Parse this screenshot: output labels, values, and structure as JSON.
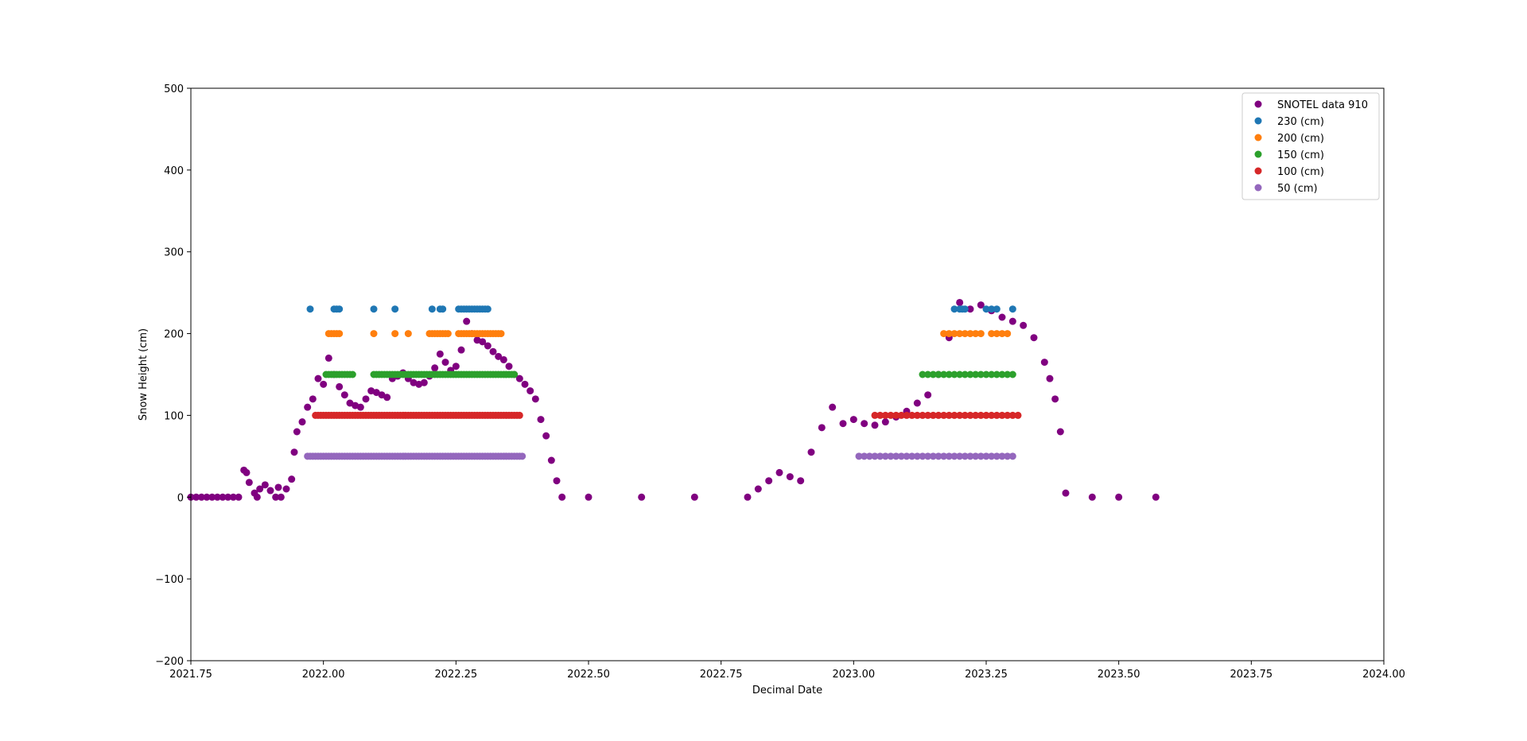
{
  "chart_data": {
    "type": "scatter",
    "title": "",
    "xlabel": "Decimal Date",
    "ylabel": "Snow Height (cm)",
    "xlim": [
      2021.75,
      2024.0
    ],
    "ylim": [
      -200,
      500
    ],
    "x_ticks": [
      2021.75,
      2022.0,
      2022.25,
      2022.5,
      2022.75,
      2023.0,
      2023.25,
      2023.5,
      2023.75,
      2024.0
    ],
    "x_tick_labels": [
      "2021.75",
      "2022.00",
      "2022.25",
      "2022.50",
      "2022.75",
      "2023.00",
      "2023.25",
      "2023.50",
      "2023.75",
      "2024.00"
    ],
    "y_ticks": [
      -200,
      -100,
      0,
      100,
      200,
      300,
      400,
      500
    ],
    "y_tick_labels": [
      "−200",
      "−100",
      "0",
      "100",
      "200",
      "300",
      "400",
      "500"
    ],
    "grid": false,
    "legend_position": "top-right",
    "series": [
      {
        "name": "SNOTEL data 910",
        "color": "#800080",
        "x": [
          2021.75,
          2021.76,
          2021.77,
          2021.78,
          2021.79,
          2021.8,
          2021.81,
          2021.82,
          2021.83,
          2021.84,
          2021.85,
          2021.855,
          2021.86,
          2021.87,
          2021.875,
          2021.88,
          2021.89,
          2021.9,
          2021.91,
          2021.915,
          2021.92,
          2021.93,
          2021.94,
          2021.945,
          2021.95,
          2021.96,
          2021.97,
          2021.98,
          2021.99,
          2022.0,
          2022.01,
          2022.02,
          2022.03,
          2022.04,
          2022.05,
          2022.06,
          2022.07,
          2022.08,
          2022.09,
          2022.1,
          2022.11,
          2022.12,
          2022.13,
          2022.14,
          2022.15,
          2022.16,
          2022.17,
          2022.18,
          2022.19,
          2022.2,
          2022.21,
          2022.22,
          2022.23,
          2022.24,
          2022.25,
          2022.26,
          2022.27,
          2022.28,
          2022.29,
          2022.3,
          2022.31,
          2022.32,
          2022.33,
          2022.34,
          2022.35,
          2022.36,
          2022.37,
          2022.38,
          2022.39,
          2022.4,
          2022.41,
          2022.42,
          2022.43,
          2022.44,
          2022.45,
          2022.5,
          2022.6,
          2022.7,
          2022.8,
          2022.82,
          2022.84,
          2022.86,
          2022.88,
          2022.9,
          2022.92,
          2022.94,
          2022.96,
          2022.98,
          2023.0,
          2023.02,
          2023.04,
          2023.06,
          2023.08,
          2023.1,
          2023.12,
          2023.14,
          2023.16,
          2023.18,
          2023.2,
          2023.22,
          2023.24,
          2023.26,
          2023.28,
          2023.3,
          2023.32,
          2023.34,
          2023.36,
          2023.37,
          2023.38,
          2023.39,
          2023.4,
          2023.45,
          2023.5,
          2023.57
        ],
        "values": [
          0,
          0,
          0,
          0,
          0,
          0,
          0,
          0,
          0,
          0,
          33,
          30,
          18,
          5,
          0,
          10,
          15,
          8,
          0,
          12,
          0,
          10,
          22,
          55,
          80,
          92,
          110,
          120,
          145,
          138,
          170,
          150,
          135,
          125,
          115,
          112,
          110,
          120,
          130,
          128,
          125,
          122,
          145,
          148,
          152,
          145,
          140,
          138,
          140,
          148,
          158,
          175,
          165,
          155,
          160,
          180,
          215,
          200,
          192,
          190,
          185,
          178,
          172,
          168,
          160,
          150,
          145,
          138,
          130,
          120,
          95,
          75,
          45,
          20,
          0,
          0,
          0,
          0,
          0,
          10,
          20,
          30,
          25,
          20,
          55,
          85,
          110,
          90,
          95,
          90,
          88,
          92,
          98,
          105,
          115,
          125,
          150,
          195,
          238,
          230,
          235,
          228,
          220,
          215,
          210,
          195,
          165,
          145,
          120,
          80,
          5,
          0,
          0,
          0
        ]
      },
      {
        "name": "230 (cm)",
        "color": "#1f77b4",
        "x": [
          2021.975,
          2022.02,
          2022.025,
          2022.03,
          2022.095,
          2022.135,
          2022.205,
          2022.22,
          2022.225,
          2022.255,
          2022.26,
          2022.265,
          2022.27,
          2022.275,
          2022.28,
          2022.285,
          2022.29,
          2022.295,
          2022.3,
          2022.305,
          2022.31,
          2023.19,
          2023.2,
          2023.205,
          2023.21,
          2023.25,
          2023.26,
          2023.27,
          2023.3
        ],
        "values": [
          230,
          230,
          230,
          230,
          230,
          230,
          230,
          230,
          230,
          230,
          230,
          230,
          230,
          230,
          230,
          230,
          230,
          230,
          230,
          230,
          230,
          230,
          230,
          230,
          230,
          230,
          230,
          230,
          230
        ]
      },
      {
        "name": "200 (cm)",
        "color": "#ff7f0e",
        "x": [
          2022.01,
          2022.015,
          2022.02,
          2022.025,
          2022.03,
          2022.095,
          2022.135,
          2022.16,
          2022.2,
          2022.205,
          2022.21,
          2022.215,
          2022.22,
          2022.225,
          2022.23,
          2022.235,
          2022.255,
          2022.26,
          2022.265,
          2022.27,
          2022.275,
          2022.28,
          2022.285,
          2022.29,
          2022.295,
          2022.3,
          2022.305,
          2022.31,
          2022.315,
          2022.32,
          2022.325,
          2022.33,
          2022.335,
          2023.17,
          2023.18,
          2023.19,
          2023.2,
          2023.21,
          2023.22,
          2023.23,
          2023.24,
          2023.26,
          2023.27,
          2023.28,
          2023.29
        ],
        "values": [
          200,
          200,
          200,
          200,
          200,
          200,
          200,
          200,
          200,
          200,
          200,
          200,
          200,
          200,
          200,
          200,
          200,
          200,
          200,
          200,
          200,
          200,
          200,
          200,
          200,
          200,
          200,
          200,
          200,
          200,
          200,
          200,
          200,
          200,
          200,
          200,
          200,
          200,
          200,
          200,
          200,
          200,
          200,
          200,
          200
        ]
      },
      {
        "name": "150 (cm)",
        "color": "#2ca02c",
        "x": [
          2022.005,
          2022.01,
          2022.015,
          2022.02,
          2022.025,
          2022.03,
          2022.035,
          2022.04,
          2022.045,
          2022.05,
          2022.055,
          2022.095,
          2022.1,
          2022.105,
          2022.11,
          2022.115,
          2022.12,
          2022.125,
          2022.13,
          2022.135,
          2022.14,
          2022.145,
          2022.15,
          2022.155,
          2022.16,
          2022.165,
          2022.17,
          2022.175,
          2022.18,
          2022.185,
          2022.19,
          2022.195,
          2022.2,
          2022.205,
          2022.21,
          2022.215,
          2022.22,
          2022.225,
          2022.23,
          2022.235,
          2022.24,
          2022.245,
          2022.25,
          2022.255,
          2022.26,
          2022.265,
          2022.27,
          2022.275,
          2022.28,
          2022.285,
          2022.29,
          2022.295,
          2022.3,
          2022.305,
          2022.31,
          2022.315,
          2022.32,
          2022.325,
          2022.33,
          2022.335,
          2022.34,
          2022.345,
          2022.35,
          2022.355,
          2022.36,
          2023.13,
          2023.14,
          2023.15,
          2023.16,
          2023.17,
          2023.18,
          2023.19,
          2023.2,
          2023.21,
          2023.22,
          2023.23,
          2023.24,
          2023.25,
          2023.26,
          2023.27,
          2023.28,
          2023.29,
          2023.3
        ],
        "values": [
          150,
          150,
          150,
          150,
          150,
          150,
          150,
          150,
          150,
          150,
          150,
          150,
          150,
          150,
          150,
          150,
          150,
          150,
          150,
          150,
          150,
          150,
          150,
          150,
          150,
          150,
          150,
          150,
          150,
          150,
          150,
          150,
          150,
          150,
          150,
          150,
          150,
          150,
          150,
          150,
          150,
          150,
          150,
          150,
          150,
          150,
          150,
          150,
          150,
          150,
          150,
          150,
          150,
          150,
          150,
          150,
          150,
          150,
          150,
          150,
          150,
          150,
          150,
          150,
          150,
          150,
          150,
          150,
          150,
          150,
          150,
          150,
          150,
          150,
          150,
          150,
          150,
          150,
          150,
          150,
          150,
          150,
          150
        ]
      },
      {
        "name": "100 (cm)",
        "color": "#d62728",
        "x": [
          2021.985,
          2021.99,
          2021.995,
          2022.0,
          2022.005,
          2022.01,
          2022.015,
          2022.02,
          2022.025,
          2022.03,
          2022.035,
          2022.04,
          2022.045,
          2022.05,
          2022.055,
          2022.06,
          2022.065,
          2022.07,
          2022.075,
          2022.08,
          2022.085,
          2022.09,
          2022.095,
          2022.1,
          2022.105,
          2022.11,
          2022.115,
          2022.12,
          2022.125,
          2022.13,
          2022.135,
          2022.14,
          2022.145,
          2022.15,
          2022.155,
          2022.16,
          2022.165,
          2022.17,
          2022.175,
          2022.18,
          2022.185,
          2022.19,
          2022.195,
          2022.2,
          2022.205,
          2022.21,
          2022.215,
          2022.22,
          2022.225,
          2022.23,
          2022.235,
          2022.24,
          2022.245,
          2022.25,
          2022.255,
          2022.26,
          2022.265,
          2022.27,
          2022.275,
          2022.28,
          2022.285,
          2022.29,
          2022.295,
          2022.3,
          2022.305,
          2022.31,
          2022.315,
          2022.32,
          2022.325,
          2022.33,
          2022.335,
          2022.34,
          2022.345,
          2022.35,
          2022.355,
          2022.36,
          2022.365,
          2022.37,
          2023.04,
          2023.05,
          2023.06,
          2023.07,
          2023.08,
          2023.09,
          2023.1,
          2023.11,
          2023.12,
          2023.13,
          2023.14,
          2023.15,
          2023.16,
          2023.17,
          2023.18,
          2023.19,
          2023.2,
          2023.21,
          2023.22,
          2023.23,
          2023.24,
          2023.25,
          2023.26,
          2023.27,
          2023.28,
          2023.29,
          2023.3,
          2023.31
        ],
        "values": [
          100,
          100,
          100,
          100,
          100,
          100,
          100,
          100,
          100,
          100,
          100,
          100,
          100,
          100,
          100,
          100,
          100,
          100,
          100,
          100,
          100,
          100,
          100,
          100,
          100,
          100,
          100,
          100,
          100,
          100,
          100,
          100,
          100,
          100,
          100,
          100,
          100,
          100,
          100,
          100,
          100,
          100,
          100,
          100,
          100,
          100,
          100,
          100,
          100,
          100,
          100,
          100,
          100,
          100,
          100,
          100,
          100,
          100,
          100,
          100,
          100,
          100,
          100,
          100,
          100,
          100,
          100,
          100,
          100,
          100,
          100,
          100,
          100,
          100,
          100,
          100,
          100,
          100,
          100,
          100,
          100,
          100,
          100,
          100,
          100,
          100,
          100,
          100,
          100,
          100,
          100,
          100,
          100,
          100,
          100,
          100,
          100,
          100,
          100,
          100,
          100,
          100,
          100,
          100,
          100,
          100
        ]
      },
      {
        "name": "50 (cm)",
        "color": "#9467bd",
        "x": [
          2021.97,
          2021.975,
          2021.98,
          2021.985,
          2021.99,
          2021.995,
          2022.0,
          2022.005,
          2022.01,
          2022.015,
          2022.02,
          2022.025,
          2022.03,
          2022.035,
          2022.04,
          2022.045,
          2022.05,
          2022.055,
          2022.06,
          2022.065,
          2022.07,
          2022.075,
          2022.08,
          2022.085,
          2022.09,
          2022.095,
          2022.1,
          2022.105,
          2022.11,
          2022.115,
          2022.12,
          2022.125,
          2022.13,
          2022.135,
          2022.14,
          2022.145,
          2022.15,
          2022.155,
          2022.16,
          2022.165,
          2022.17,
          2022.175,
          2022.18,
          2022.185,
          2022.19,
          2022.195,
          2022.2,
          2022.205,
          2022.21,
          2022.215,
          2022.22,
          2022.225,
          2022.23,
          2022.235,
          2022.24,
          2022.245,
          2022.25,
          2022.255,
          2022.26,
          2022.265,
          2022.27,
          2022.275,
          2022.28,
          2022.285,
          2022.29,
          2022.295,
          2022.3,
          2022.305,
          2022.31,
          2022.315,
          2022.32,
          2022.325,
          2022.33,
          2022.335,
          2022.34,
          2022.345,
          2022.35,
          2022.355,
          2022.36,
          2022.365,
          2022.37,
          2022.375,
          2023.01,
          2023.02,
          2023.03,
          2023.04,
          2023.05,
          2023.06,
          2023.07,
          2023.08,
          2023.09,
          2023.1,
          2023.11,
          2023.12,
          2023.13,
          2023.14,
          2023.15,
          2023.16,
          2023.17,
          2023.18,
          2023.19,
          2023.2,
          2023.21,
          2023.22,
          2023.23,
          2023.24,
          2023.25,
          2023.26,
          2023.27,
          2023.28,
          2023.29,
          2023.3
        ],
        "values": [
          50,
          50,
          50,
          50,
          50,
          50,
          50,
          50,
          50,
          50,
          50,
          50,
          50,
          50,
          50,
          50,
          50,
          50,
          50,
          50,
          50,
          50,
          50,
          50,
          50,
          50,
          50,
          50,
          50,
          50,
          50,
          50,
          50,
          50,
          50,
          50,
          50,
          50,
          50,
          50,
          50,
          50,
          50,
          50,
          50,
          50,
          50,
          50,
          50,
          50,
          50,
          50,
          50,
          50,
          50,
          50,
          50,
          50,
          50,
          50,
          50,
          50,
          50,
          50,
          50,
          50,
          50,
          50,
          50,
          50,
          50,
          50,
          50,
          50,
          50,
          50,
          50,
          50,
          50,
          50,
          50,
          50,
          50,
          50,
          50,
          50,
          50,
          50,
          50,
          50,
          50,
          50,
          50,
          50,
          50,
          50,
          50,
          50,
          50,
          50,
          50,
          50,
          50,
          50,
          50,
          50,
          50,
          50,
          50,
          50,
          50,
          50
        ]
      }
    ]
  }
}
